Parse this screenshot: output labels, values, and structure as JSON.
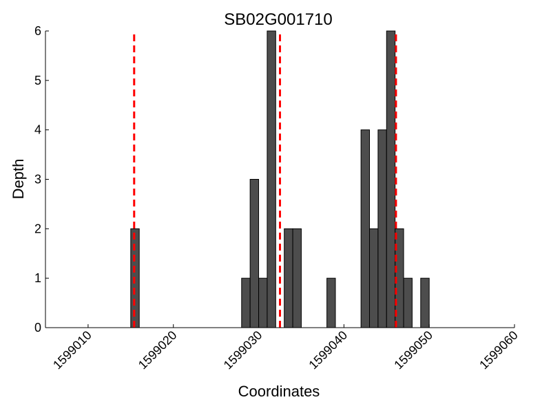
{
  "chart_data": {
    "type": "bar",
    "title": "SB02G001710",
    "xlabel": "Coordinates",
    "ylabel": "Depth",
    "xlim": [
      1599005,
      1599060
    ],
    "ylim": [
      0,
      6
    ],
    "x_ticks": [
      1599010,
      1599020,
      1599030,
      1599040,
      1599050,
      1599060
    ],
    "y_ticks": [
      0,
      1,
      2,
      3,
      4,
      5,
      6
    ],
    "bar_width": 1,
    "bar_color": "#4d4d4d",
    "bars": [
      {
        "x": 1599015,
        "value": 2
      },
      {
        "x": 1599028,
        "value": 1
      },
      {
        "x": 1599029,
        "value": 3
      },
      {
        "x": 1599030,
        "value": 1
      },
      {
        "x": 1599031,
        "value": 6
      },
      {
        "x": 1599033,
        "value": 2
      },
      {
        "x": 1599034,
        "value": 2
      },
      {
        "x": 1599038,
        "value": 1
      },
      {
        "x": 1599042,
        "value": 4
      },
      {
        "x": 1599043,
        "value": 2
      },
      {
        "x": 1599044,
        "value": 4
      },
      {
        "x": 1599045,
        "value": 6
      },
      {
        "x": 1599046,
        "value": 2
      },
      {
        "x": 1599047,
        "value": 1
      },
      {
        "x": 1599049,
        "value": 1
      }
    ],
    "reference_lines": {
      "color": "#ff0000",
      "style": "dashed",
      "x": [
        1599015.4,
        1599032.5,
        1599046.1
      ]
    },
    "grid": false,
    "legend": "none"
  }
}
